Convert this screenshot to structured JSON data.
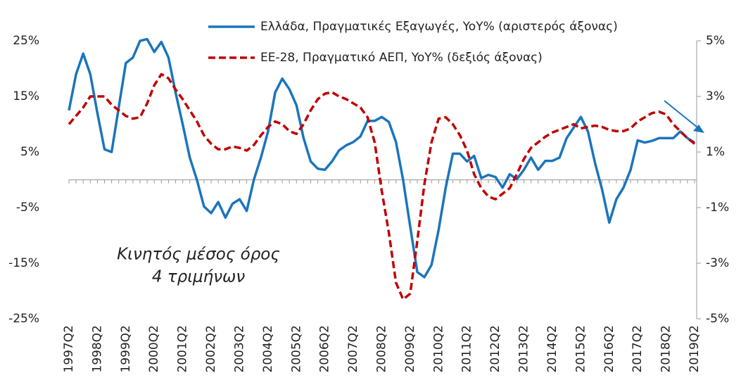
{
  "chart_data": {
    "type": "line",
    "categories": [
      "1997Q2",
      null,
      null,
      null,
      "1998Q2",
      null,
      null,
      null,
      "1999Q2",
      null,
      null,
      null,
      "2000Q2",
      null,
      null,
      null,
      "2001Q2",
      null,
      null,
      null,
      "2002Q2",
      null,
      null,
      null,
      "2003Q2",
      null,
      null,
      null,
      "2004Q2",
      null,
      null,
      null,
      "2005Q2",
      null,
      null,
      null,
      "2006Q2",
      null,
      null,
      null,
      "2007Q2",
      null,
      null,
      null,
      "2008Q2",
      null,
      null,
      null,
      "2009Q2",
      null,
      null,
      null,
      "2010Q2",
      null,
      null,
      null,
      "2011Q2",
      null,
      null,
      null,
      "2012Q2",
      null,
      null,
      null,
      "2013Q2",
      null,
      null,
      null,
      "2014Q2",
      null,
      null,
      null,
      "2015Q2",
      null,
      null,
      null,
      "2016Q2",
      null,
      null,
      null,
      "2017Q2",
      null,
      null,
      null,
      "2018Q2",
      null,
      null,
      null,
      "2019Q2"
    ],
    "series": [
      {
        "name": "Ελλάδα, Πραγματικές Εξαγωγές, YoY% (αριστερός άξονας)",
        "color": "#1b75bc",
        "dash": false,
        "values": [
          12.5,
          19,
          22.7,
          19,
          12,
          5.5,
          5,
          13,
          21,
          22,
          25,
          25.3,
          23,
          24.8,
          22,
          15.7,
          10,
          4,
          0,
          -4.8,
          -6,
          -4,
          -6.8,
          -4.3,
          -3.5,
          -5.6,
          0,
          4,
          8.7,
          15.7,
          18.2,
          16.3,
          13.4,
          7.5,
          3.3,
          2,
          1.8,
          3.3,
          5.3,
          6.2,
          6.8,
          7.8,
          10.6,
          10.6,
          11.3,
          10.4,
          6.8,
          0,
          -8.4,
          -16.6,
          -17.5,
          -15.3,
          -9,
          -1.4,
          4.7,
          4.7,
          3.3,
          4.3,
          0.3,
          0.9,
          0.5,
          -1.4,
          1,
          0.1,
          1.8,
          4,
          1.8,
          3.4,
          3.4,
          4,
          7.5,
          9.4,
          11.3,
          8.7,
          3,
          -1.8,
          -7.7,
          -3.5,
          -1.4,
          1.8,
          7.1,
          6.7,
          7,
          7.5,
          7.5,
          7.5,
          8.7,
          7.5,
          6.7
        ]
      },
      {
        "name": "ΕΕ-28, Πραγματικό ΑΕΠ, YoY% (δεξιός άξονας)",
        "color": "#c00000",
        "dash": true,
        "axis": "y2",
        "values": [
          2.0,
          2.3,
          2.6,
          3.0,
          3.0,
          3.0,
          2.7,
          2.5,
          2.3,
          2.2,
          2.25,
          2.75,
          3.4,
          3.8,
          3.65,
          3.25,
          2.9,
          2.5,
          2.1,
          1.6,
          1.3,
          1.1,
          1.1,
          1.2,
          1.15,
          1.05,
          1.25,
          1.6,
          1.9,
          2.1,
          2.0,
          1.75,
          1.65,
          2.0,
          2.5,
          2.9,
          3.1,
          3.15,
          3.0,
          2.9,
          2.75,
          2.6,
          2.25,
          1.35,
          -0.4,
          -1.9,
          -3.7,
          -4.3,
          -4.1,
          -2.2,
          -0.15,
          1.35,
          2.2,
          2.25,
          2.0,
          1.6,
          1.05,
          0.2,
          -0.3,
          -0.6,
          -0.7,
          -0.5,
          -0.3,
          0.2,
          0.75,
          1.15,
          1.35,
          1.55,
          1.7,
          1.8,
          1.9,
          2.0,
          1.85,
          1.9,
          1.95,
          1.9,
          1.8,
          1.75,
          1.75,
          1.85,
          2.1,
          2.25,
          2.4,
          2.45,
          2.35,
          2.0,
          1.75,
          1.5,
          1.3
        ]
      }
    ],
    "ylim": [
      -25,
      25
    ],
    "yticks": [
      {
        "value": -25,
        "label": "-25%"
      },
      {
        "value": -15,
        "label": "-15%"
      },
      {
        "value": -5,
        "label": "-5%"
      },
      {
        "value": 5,
        "label": "5%"
      },
      {
        "value": 15,
        "label": "15%"
      },
      {
        "value": 25,
        "label": "25%"
      }
    ],
    "y2lim": [
      -5,
      5
    ],
    "y2ticks": [
      {
        "value": -5,
        "label": "-5%"
      },
      {
        "value": -3,
        "label": "-3%"
      },
      {
        "value": -1,
        "label": "-1%"
      },
      {
        "value": 1,
        "label": "1%"
      },
      {
        "value": 3,
        "label": "3%"
      },
      {
        "value": 5,
        "label": "5%"
      }
    ],
    "annotations": [
      "Κινητός μέσος όρος",
      "4 τριμήνων"
    ]
  }
}
